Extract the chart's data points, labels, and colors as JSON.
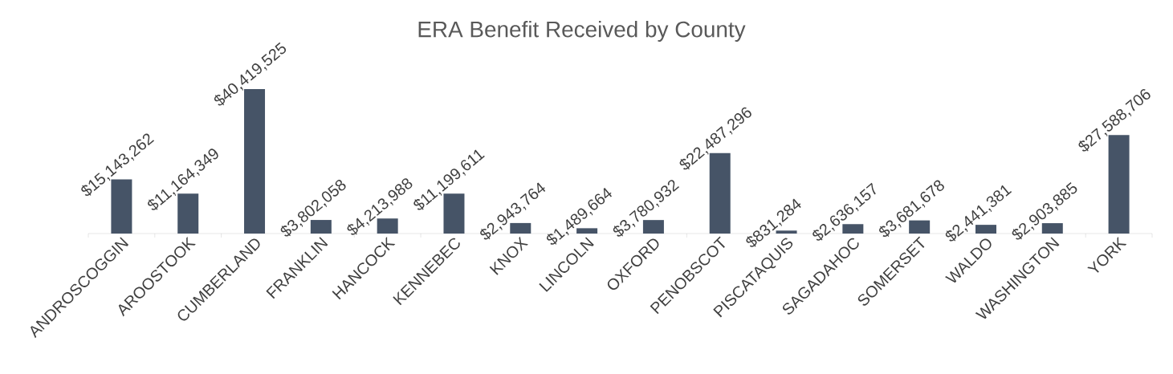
{
  "chart_data": {
    "type": "bar",
    "title": "ERA Benefit Received by County",
    "categories": [
      "ANDROSCOGGIN",
      "AROOSTOOK",
      "CUMBERLAND",
      "FRANKLIN",
      "HANCOCK",
      "KENNEBEC",
      "KNOX",
      "LINCOLN",
      "OXFORD",
      "PENOBSCOT",
      "PISCATAQUIS",
      "SAGADAHOC",
      "SOMERSET",
      "WALDO",
      "WASHINGTON",
      "YORK"
    ],
    "values": [
      15143262,
      11164349,
      40419525,
      3802058,
      4213988,
      11199611,
      2943764,
      1489664,
      3780932,
      22487296,
      831284,
      2636157,
      3681678,
      2441381,
      2903885,
      27588706
    ],
    "value_labels": [
      "$15,143,262",
      "$11,164,349",
      "$40,419,525",
      "$3,802,058",
      "$4,213,988",
      "$11,199,611",
      "$2,943,764",
      "$1,489,664",
      "$3,780,932",
      "$22,487,296",
      "$831,284",
      "$2,636,157",
      "$3,681,678",
      "$2,441,381",
      "$2,903,885",
      "$27,588,706"
    ],
    "color": "#465467"
  }
}
